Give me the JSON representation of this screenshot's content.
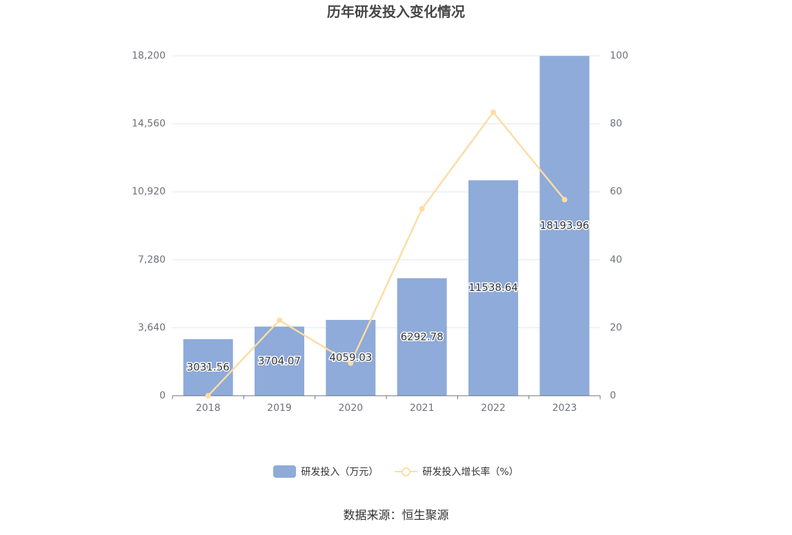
{
  "chart_data": {
    "type": "bar",
    "title": "历年研发投入变化情况",
    "categories": [
      "2018",
      "2019",
      "2020",
      "2021",
      "2022",
      "2023"
    ],
    "series": [
      {
        "name": "研发投入（万元）",
        "type": "bar",
        "axis": "left",
        "values": [
          3031.56,
          3704.07,
          4059.03,
          6292.78,
          11538.64,
          18193.96
        ],
        "data_labels": true
      },
      {
        "name": "研发投入增长率（%）",
        "type": "line",
        "axis": "right",
        "values": [
          0,
          22.2,
          9.6,
          55.0,
          83.4,
          57.7
        ],
        "data_labels": false
      }
    ],
    "y_left": {
      "ylim": [
        0,
        18200
      ],
      "ticks": [
        0,
        3640,
        7280,
        10920,
        14560,
        18200
      ],
      "tick_labels": [
        "0",
        "3,640",
        "7,280",
        "10,920",
        "14,560",
        "18,200"
      ]
    },
    "y_right": {
      "ylim": [
        0,
        100
      ],
      "ticks": [
        0,
        20,
        40,
        60,
        80,
        100
      ],
      "tick_labels": [
        "0",
        "20",
        "40",
        "60",
        "80",
        "100"
      ]
    },
    "grid": true,
    "legend_position": "bottom",
    "colors": {
      "bar": "#8eabd9",
      "line": "#fddca5",
      "grid": "#e0e6f1",
      "axis": "#6e7079"
    }
  },
  "source": "数据来源：恒生聚源"
}
